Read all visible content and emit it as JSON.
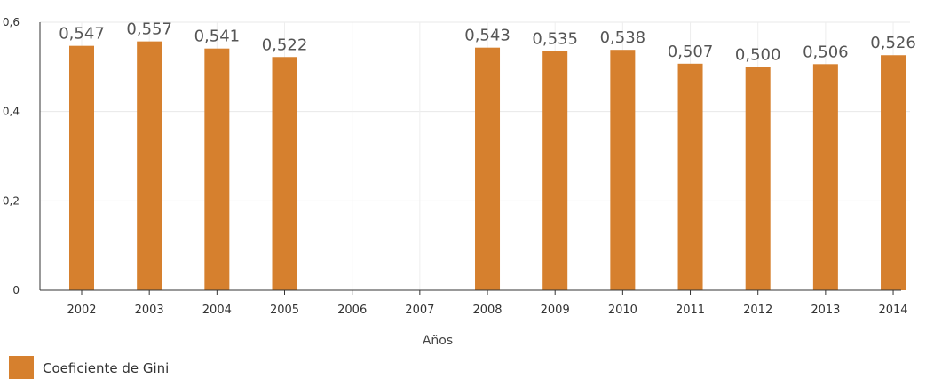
{
  "chart_data": {
    "type": "bar",
    "categories": [
      "2002",
      "2003",
      "2004",
      "2005",
      "2006",
      "2007",
      "2008",
      "2009",
      "2010",
      "2011",
      "2012",
      "2013",
      "2014"
    ],
    "series": [
      {
        "name": "Coeficiente de Gini",
        "values": [
          0.547,
          0.557,
          0.541,
          0.522,
          null,
          null,
          0.543,
          0.535,
          0.538,
          0.507,
          0.5,
          0.506,
          0.526
        ],
        "labels": [
          "0,547",
          "0,557",
          "0,541",
          "0,522",
          "",
          "",
          "0,543",
          "0,535",
          "0,538",
          "0,507",
          "0,500",
          "0,506",
          "0,526"
        ]
      }
    ],
    "title": "",
    "xlabel": "Años",
    "ylabel": "",
    "ylim": [
      0,
      0.6
    ],
    "yticks": [
      0,
      0.2,
      0.4,
      0.6
    ],
    "ytick_labels": [
      "0",
      "0,2",
      "0,4",
      "0,6"
    ],
    "grid": true,
    "legend_position": "bottom-left",
    "bar_color": "#D6802E"
  }
}
